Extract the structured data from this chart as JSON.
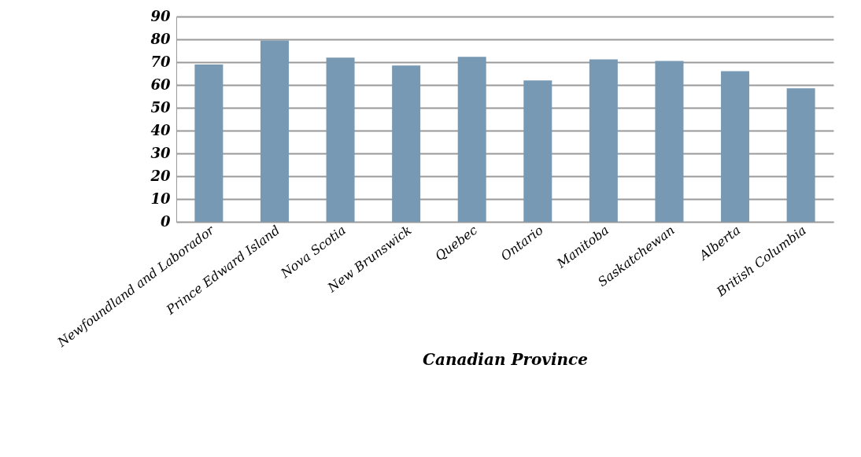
{
  "chart_data": {
    "type": "bar",
    "xlabel": "Canadian Province",
    "categories": [
      "Newfoundland and Laborador",
      "Prince Edward Island",
      "Nova Scotia",
      "New Brunswick",
      "Quebec",
      "Ontario",
      "Manitoba",
      "Saskatchewan",
      "Alberta",
      "British Columbia"
    ],
    "values": [
      69,
      79.5,
      72,
      68.5,
      72.3,
      62,
      71.2,
      70.5,
      66,
      58.5
    ],
    "color": "#7799b3",
    "ylim": [
      0,
      90
    ],
    "yticks": [
      0,
      10,
      20,
      30,
      40,
      50,
      60,
      70,
      80,
      90
    ],
    "grid": "y"
  }
}
